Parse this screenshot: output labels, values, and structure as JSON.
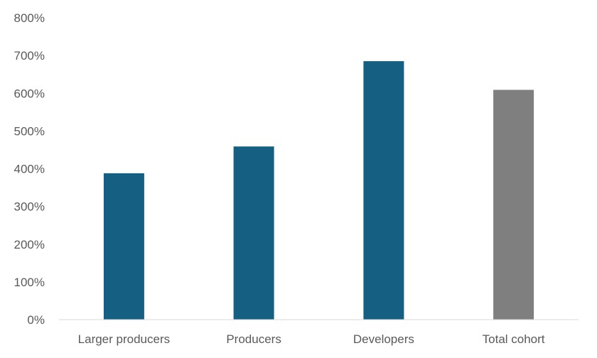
{
  "chart_data": {
    "type": "bar",
    "title": "",
    "xlabel": "",
    "ylabel": "",
    "categories": [
      "Larger producers",
      "Producers",
      "Developers",
      "Total cohort"
    ],
    "values": [
      388,
      459,
      685,
      609
    ],
    "bar_colors": [
      "#156082",
      "#156082",
      "#156082",
      "#7f7f7f"
    ],
    "ylim": [
      0,
      800
    ],
    "yticks": [
      0,
      100,
      200,
      300,
      400,
      500,
      600,
      700,
      800
    ],
    "ytick_labels": [
      "0%",
      "100%",
      "200%",
      "300%",
      "400%",
      "500%",
      "600%",
      "700%",
      "800%"
    ],
    "grid": false,
    "legend": "none",
    "axis_color": "#d9d9d9",
    "label_color": "#595959"
  }
}
